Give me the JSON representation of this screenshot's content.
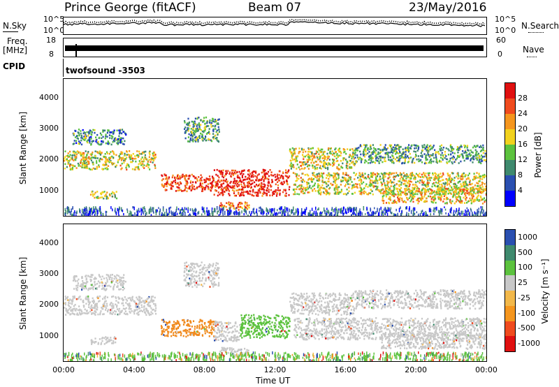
{
  "header": {
    "station": "Prince George (fitACF)",
    "beam": "Beam 07",
    "date": "23/May/2016"
  },
  "strips": {
    "nsky": {
      "label": "N.Sky",
      "top_tick": "10^5",
      "bottom_tick": "10^0"
    },
    "nsearch": {
      "label": "N.Search",
      "top_tick": "10^5",
      "bottom_tick": "10^0"
    },
    "freq": {
      "label_line1": "Freq.",
      "label_line2": "[MHz]",
      "top_tick": "18",
      "bottom_tick": "8"
    },
    "nave": {
      "label": "Nave",
      "top_tick": "60",
      "bottom_tick": "0"
    },
    "cpid": {
      "label": "CPID",
      "value": "twofsound  -3503"
    }
  },
  "colors": {
    "power_scale": [
      "#0000ff",
      "#2a4fb0",
      "#3f8a6e",
      "#5cc23e",
      "#f2d21e",
      "#f5961e",
      "#f04b1e",
      "#e01010"
    ],
    "velocity_scale": [
      "#e01010",
      "#f04b1e",
      "#f5961e",
      "#f2b84a",
      "#c8c8c8",
      "#5cc23e",
      "#3f8a6e",
      "#2a4fb0"
    ]
  },
  "chart_data": [
    {
      "type": "heatmap",
      "title": "",
      "xlabel": "Time UT",
      "ylabel": "Slant Range [km]",
      "x_ticks": [
        "00:00",
        "04:00",
        "08:00",
        "12:00",
        "16:00",
        "20:00",
        "00:00"
      ],
      "y_ticks": [
        1000,
        2000,
        3000,
        4000
      ],
      "xlim_hours": [
        0,
        24
      ],
      "ylim_km": [
        180,
        4600
      ],
      "colorbar": {
        "label": "Power [dB]",
        "ticks": [
          4,
          8,
          12,
          16,
          20,
          24,
          28
        ],
        "range": [
          0,
          32
        ]
      },
      "scatter_regions": [
        {
          "x": [
            0,
            5.2
          ],
          "y": [
            1700,
            2300
          ],
          "level": 0.55
        },
        {
          "x": [
            0.5,
            3.5
          ],
          "y": [
            2500,
            3000
          ],
          "level": 0.3
        },
        {
          "x": [
            1.5,
            3.0
          ],
          "y": [
            750,
            1000
          ],
          "level": 0.5
        },
        {
          "x": [
            5.5,
            8.5
          ],
          "y": [
            1000,
            1550
          ],
          "level": 0.85
        },
        {
          "x": [
            8.5,
            12.8
          ],
          "y": [
            850,
            1700
          ],
          "level": 0.92
        },
        {
          "x": [
            8.8,
            10.5
          ],
          "y": [
            400,
            650
          ],
          "level": 0.75
        },
        {
          "x": [
            12.8,
            16.5
          ],
          "y": [
            1700,
            2400
          ],
          "level": 0.55
        },
        {
          "x": [
            13.0,
            24
          ],
          "y": [
            900,
            1600
          ],
          "level": 0.55
        },
        {
          "x": [
            16.5,
            24
          ],
          "y": [
            1900,
            2500
          ],
          "level": 0.35
        },
        {
          "x": [
            18,
            24
          ],
          "y": [
            600,
            1100
          ],
          "level": 0.6
        },
        {
          "x": [
            6.8,
            8.8
          ],
          "y": [
            2600,
            3400
          ],
          "level": 0.35
        }
      ]
    },
    {
      "type": "heatmap",
      "title": "",
      "xlabel": "Time UT",
      "ylabel": "Slant Range [km]",
      "x_ticks": [
        "00:00",
        "04:00",
        "08:00",
        "12:00",
        "16:00",
        "20:00",
        "00:00"
      ],
      "y_ticks": [
        1000,
        2000,
        3000,
        4000
      ],
      "xlim_hours": [
        0,
        24
      ],
      "ylim_km": [
        180,
        4600
      ],
      "colorbar": {
        "label": "Velocity [m s⁻¹]",
        "ticks": [
          -1000,
          -500,
          -100,
          -25,
          25,
          100,
          500,
          1000
        ]
      },
      "scatter_regions": [
        {
          "x": [
            0,
            5.2
          ],
          "y": [
            1700,
            2300
          ],
          "level": "gray"
        },
        {
          "x": [
            0.5,
            3.5
          ],
          "y": [
            2500,
            3000
          ],
          "level": "gray"
        },
        {
          "x": [
            1.5,
            3.0
          ],
          "y": [
            750,
            1000
          ],
          "level": "gray"
        },
        {
          "x": [
            5.5,
            8.5
          ],
          "y": [
            1000,
            1550
          ],
          "level": "orange"
        },
        {
          "x": [
            8.5,
            10.0
          ],
          "y": [
            850,
            1500
          ],
          "level": "gray"
        },
        {
          "x": [
            10.0,
            12.8
          ],
          "y": [
            950,
            1700
          ],
          "level": "green"
        },
        {
          "x": [
            8.8,
            10.5
          ],
          "y": [
            400,
            650
          ],
          "level": "gray"
        },
        {
          "x": [
            12.8,
            16.5
          ],
          "y": [
            1700,
            2400
          ],
          "level": "gray"
        },
        {
          "x": [
            13.0,
            24
          ],
          "y": [
            900,
            1600
          ],
          "level": "gray"
        },
        {
          "x": [
            16.5,
            24
          ],
          "y": [
            1900,
            2500
          ],
          "level": "gray"
        },
        {
          "x": [
            18,
            24
          ],
          "y": [
            600,
            1100
          ],
          "level": "gray"
        },
        {
          "x": [
            6.8,
            8.8
          ],
          "y": [
            2600,
            3400
          ],
          "level": "gray"
        }
      ]
    }
  ]
}
